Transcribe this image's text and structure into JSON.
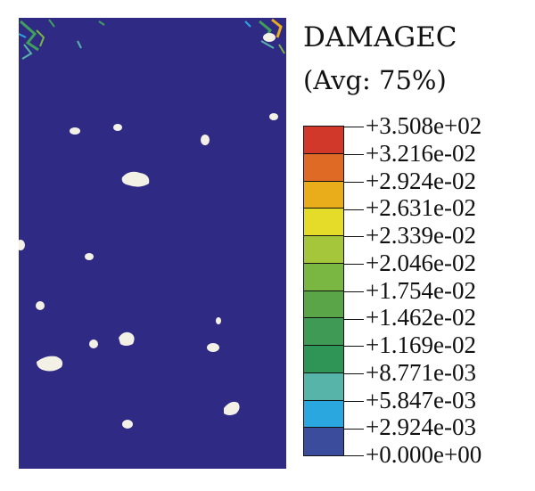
{
  "legend": {
    "title": "DAMAGEC",
    "subtitle": "(Avg: 75%)",
    "labels": [
      "+3.508e+02",
      "+3.216e-02",
      "+2.924e-02",
      "+2.631e-02",
      "+2.339e-02",
      "+2.046e-02",
      "+1.754e-02",
      "+1.462e-02",
      "+1.169e-02",
      "+8.771e-03",
      "+5.847e-03",
      "+2.924e-03",
      "+0.000e+00"
    ],
    "band_colors": [
      "#d2382a",
      "#de6a26",
      "#e9ad1b",
      "#e4dc28",
      "#a5c63b",
      "#79b642",
      "#5aa548",
      "#3f9a55",
      "#2e9556",
      "#57b4a8",
      "#2ba7e0",
      "#3a4c9b"
    ]
  },
  "plot": {
    "background_color": "#2f2b84",
    "spot_color": "#f3f0e6"
  }
}
